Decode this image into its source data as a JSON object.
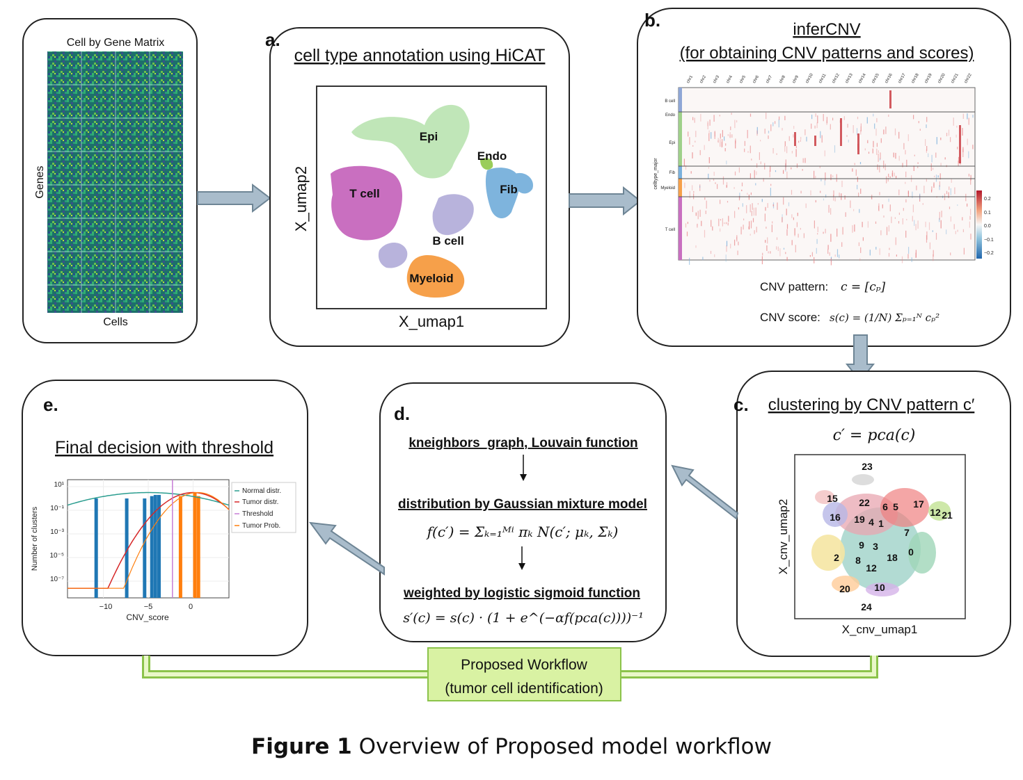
{
  "panel_matrix": {
    "title": "Cell by Gene Matrix",
    "ylabel": "Genes",
    "xlabel": "Cells"
  },
  "panel_a": {
    "letter": "a.",
    "title": "cell type annotation using HiCAT",
    "xlabel": "X_umap1",
    "ylabel": "X_umap2",
    "clusters": [
      "Epi",
      "Endo",
      "T cell",
      "Fib",
      "B cell",
      "Myeloid"
    ]
  },
  "panel_b": {
    "letter": "b.",
    "title": "inferCNV",
    "subtitle": "(for obtaining CNV patterns and scores)",
    "chromosomes": [
      "chr1",
      "chr2",
      "chr3",
      "chr4",
      "chr5",
      "chr6",
      "chr7",
      "chr8",
      "chr9",
      "chr10",
      "chr11",
      "chr12",
      "chr13",
      "chr14",
      "chr15",
      "chr16",
      "chr17",
      "chr18",
      "chr19",
      "chr20",
      "chr21",
      "chr22"
    ],
    "row_groups": [
      "B cell",
      "Endo",
      "Epi",
      "Fib",
      "Myeloid",
      "T cell"
    ],
    "row_axis_label": "celltype_major",
    "colorbar_ticks": [
      "0.2",
      "0.1",
      "0.0",
      "−0.1",
      "−0.2"
    ],
    "pattern_label": "CNV pattern:",
    "pattern_formula": "c = [cₚ]",
    "score_label": "CNV score:",
    "score_formula": "s(c) = (1/N) Σₚ₌₁ᴺ cₚ²"
  },
  "panel_c": {
    "letter": "c.",
    "title": "clustering by CNV pattern c′",
    "formula": "c′  = pca(c)",
    "xlabel": "X_cnv_umap1",
    "ylabel": "X_cnv_umap2",
    "cluster_labels": [
      "23",
      "15",
      "22",
      "6",
      "5",
      "17",
      "12",
      "21",
      "16",
      "19",
      "4",
      "1",
      "7",
      "9",
      "3",
      "2",
      "8",
      "18",
      "0",
      "12",
      "20",
      "10",
      "24"
    ]
  },
  "panel_d": {
    "letter": "d.",
    "step1": "kneighbors_graph, Louvain function",
    "step2": "distribution by Gaussian mixture model",
    "formula2": "f(c′) = Σₖ₌₁ᴹⁱ πₖ N(c′; μₖ, Σₖ)",
    "step3": "weighted by logistic sigmoid function",
    "formula3": "s′(c) = s(c) · (1 + e^(−αf(pca(c))))⁻¹"
  },
  "panel_e": {
    "letter": "e.",
    "title": "Final decision with threshold",
    "legend": [
      "Normal distr.",
      "Tumor distr.",
      "Threshold",
      "Tumor Prob."
    ],
    "xlabel": "CNV_score",
    "ylabel": "Number of clusters",
    "xticks": [
      "−10",
      "−5",
      "0"
    ],
    "yticks": [
      "10¹",
      "10⁻¹",
      "10⁻³",
      "10⁻⁵",
      "10⁻⁷"
    ]
  },
  "workflow_box": {
    "line1": "Proposed Workflow",
    "line2": "(tumor cell identification)"
  },
  "caption": {
    "label": "Figure 1",
    "text": " Overview of Proposed model workflow"
  },
  "chart_data": {
    "type": "bar",
    "xlabel": "CNV_score",
    "ylabel": "Number of clusters",
    "xlim": [
      -14,
      4
    ],
    "yscale": "log",
    "legend_position": "top-right-outside",
    "series": [
      {
        "name": "Normal distr.",
        "kind": "line",
        "color": "#2a9d8f"
      },
      {
        "name": "Tumor distr.",
        "kind": "line",
        "color": "#d62728"
      },
      {
        "name": "Threshold",
        "kind": "vline",
        "color": "#c77dd6",
        "x": -2.3
      },
      {
        "name": "Tumor Prob.",
        "kind": "line",
        "color": "#ff7f0e"
      }
    ],
    "bars": [
      {
        "x": -10.8,
        "log10": 0.0,
        "color": "#1f77b4"
      },
      {
        "x": -7.4,
        "log10": 0.0,
        "color": "#1f77b4"
      },
      {
        "x": -5.4,
        "log10": 0.0,
        "color": "#1f77b4"
      },
      {
        "x": -4.6,
        "log10": 0.2,
        "color": "#1f77b4"
      },
      {
        "x": -4.2,
        "log10": 0.3,
        "color": "#1f77b4"
      },
      {
        "x": -3.8,
        "log10": 0.3,
        "color": "#1f77b4"
      },
      {
        "x": -1.4,
        "log10": 0.2,
        "color": "#ff7f0e"
      },
      {
        "x": 0.2,
        "log10": 0.5,
        "color": "#ff7f0e"
      },
      {
        "x": 0.6,
        "log10": 0.2,
        "color": "#ff7f0e"
      }
    ]
  },
  "colors": {
    "arrow": "#a9bccb",
    "workflow_box": "#d9f2a3",
    "workflow_border": "#8bc34a"
  }
}
